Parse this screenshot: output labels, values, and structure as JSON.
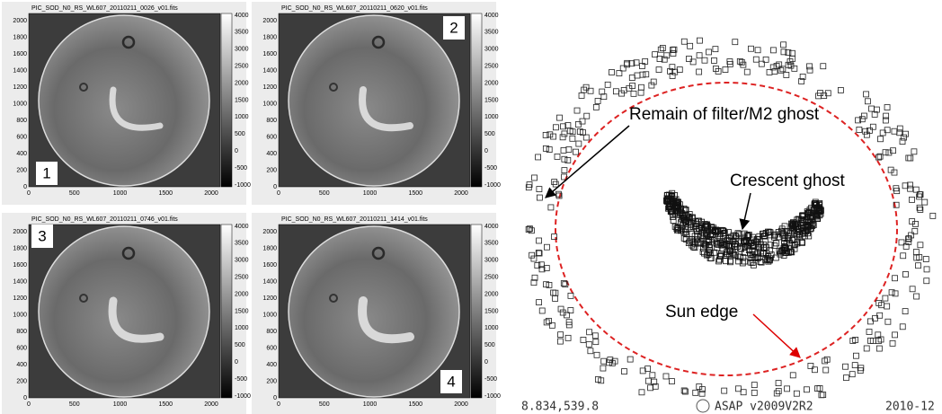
{
  "panels": [
    {
      "title": "PIC_SOD_N0_RS_WL607_20110211_0026_v01.fits",
      "label": "1"
    },
    {
      "title": "PIC_SOD_N0_RS_WL607_20110211_0620_v01.fits",
      "label": "2"
    },
    {
      "title": "PIC_SOD_N0_RS_WL607_20110211_0746_v01.fits",
      "label": "3"
    },
    {
      "title": "PIC_SOD_N0_RS_WL607_20110211_1414_v01.fits",
      "label": "4"
    }
  ],
  "x_ticks": [
    "0",
    "500",
    "1000",
    "1500",
    "2000"
  ],
  "y_ticks": [
    "0",
    "200",
    "400",
    "600",
    "800",
    "1000",
    "1200",
    "1400",
    "1600",
    "1800",
    "2000"
  ],
  "colorbar_ticks": [
    "4000",
    "3500",
    "3000",
    "2500",
    "2000",
    "1500",
    "1000",
    "500",
    "0",
    "-500",
    "-1000"
  ],
  "annotations": {
    "filter_ghost": "Remain of filter/M2 ghost",
    "crescent": "Crescent ghost",
    "sun_edge": "Sun edge"
  },
  "footer": {
    "left": "8.834,539.8",
    "center": "ASAP v2009V2R2",
    "right": "2010-12"
  }
}
